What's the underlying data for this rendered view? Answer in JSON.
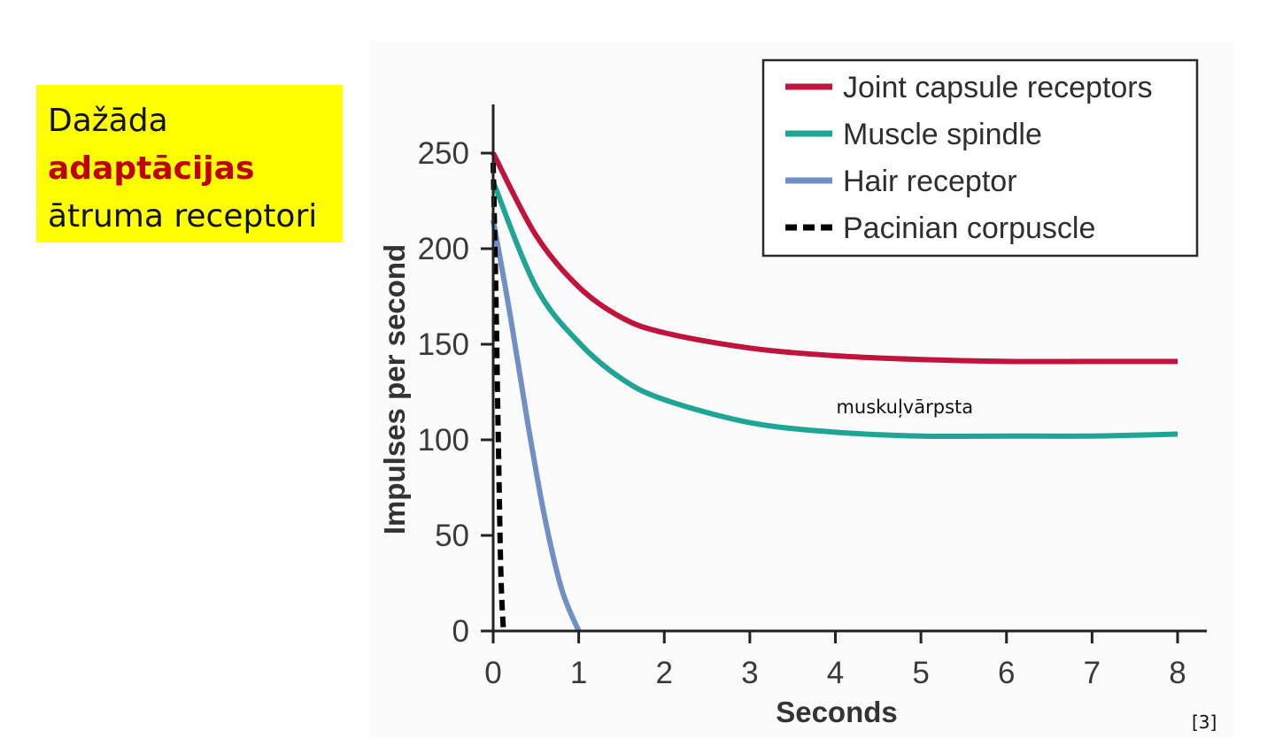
{
  "note": {
    "line1": "Dažāda",
    "line2": "adaptācijas",
    "line3": "ātruma receptori",
    "background": "#ffff00",
    "accent_color": "#c00000"
  },
  "chart_data": {
    "type": "line",
    "title": "",
    "xlabel": "Seconds",
    "ylabel": "Impulses per second",
    "xlim": [
      0,
      8
    ],
    "ylim": [
      0,
      250
    ],
    "xticks": [
      0,
      1,
      2,
      3,
      4,
      5,
      6,
      7,
      8
    ],
    "yticks": [
      0,
      50,
      100,
      150,
      200,
      250
    ],
    "grid": false,
    "legend_position": "top-right",
    "series": [
      {
        "name": "Joint capsule receptors",
        "color": "#c0143c",
        "style": "solid",
        "x": [
          0,
          0.5,
          1,
          1.5,
          2,
          3,
          4,
          5,
          6,
          7,
          8
        ],
        "y": [
          250,
          207,
          180,
          164,
          156,
          148,
          144,
          142,
          141,
          141,
          141
        ]
      },
      {
        "name": "Muscle spindle",
        "color": "#1fa596",
        "style": "solid",
        "x": [
          0,
          0.5,
          1,
          1.5,
          2,
          3,
          4,
          5,
          6,
          7,
          8
        ],
        "y": [
          235,
          180,
          151,
          132,
          121,
          109,
          104,
          102,
          102,
          102,
          103
        ]
      },
      {
        "name": "Hair receptor",
        "color": "#6f8fc6",
        "style": "solid",
        "x": [
          0,
          0.2,
          0.4,
          0.6,
          0.8,
          1.0
        ],
        "y": [
          215,
          165,
          110,
          60,
          22,
          0
        ]
      },
      {
        "name": "Pacinian corpuscle",
        "color": "#000000",
        "style": "dashed",
        "x": [
          0,
          0.03,
          0.06,
          0.09,
          0.12
        ],
        "y": [
          245,
          180,
          100,
          30,
          0
        ]
      }
    ],
    "annotations": [
      {
        "text": "muskuļvārpsta",
        "x": 5.2,
        "y": 114
      }
    ]
  },
  "reference": "[3]"
}
